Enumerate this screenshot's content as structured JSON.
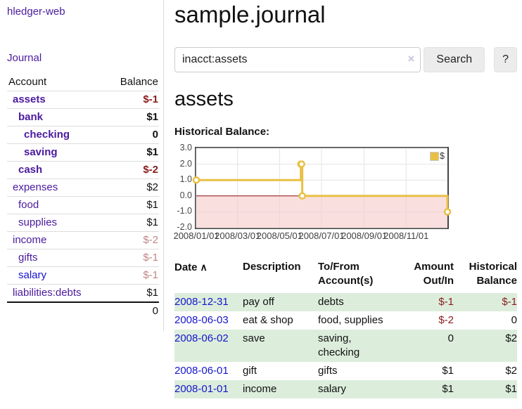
{
  "app": {
    "title": "hledger-web"
  },
  "colors": {
    "purple": "#4a1a9e",
    "blue": "#1515cd",
    "neg_strong": "#8b1c1c",
    "neg_muted": "#c28585",
    "green_row": "#dceddc",
    "gold": "#e9c044",
    "pink_region": "#f6caca",
    "zero_line": "#8f1010"
  },
  "sidebar": {
    "nav_journal": "Journal",
    "accounts_table": {
      "header_account": "Account",
      "header_balance": "Balance",
      "rows": [
        {
          "label": "assets",
          "label_class": "lvl1 strong",
          "balance": "$-1",
          "balance_class": "strong neg-strong"
        },
        {
          "label": "bank",
          "label_class": "lvl2 strong",
          "balance": "$1",
          "balance_class": "strong"
        },
        {
          "label": "checking",
          "label_class": "lvl3 strong",
          "balance": "0",
          "balance_class": "strong"
        },
        {
          "label": "saving",
          "label_class": "lvl3 strong",
          "balance": "$1",
          "balance_class": "strong"
        },
        {
          "label": "cash",
          "label_class": "lvl2 strong",
          "balance": "$-2",
          "balance_class": "strong neg-strong"
        },
        {
          "label": "expenses",
          "label_class": "lvl1",
          "balance": "$2",
          "balance_class": ""
        },
        {
          "label": "food",
          "label_class": "lvl2",
          "balance": "$1",
          "balance_class": ""
        },
        {
          "label": "supplies",
          "label_class": "lvl2",
          "balance": "$1",
          "balance_class": ""
        },
        {
          "label": "income",
          "label_class": "lvl1",
          "balance": "$-2",
          "balance_class": "neg-muted"
        },
        {
          "label": "gifts",
          "label_class": "lvl2",
          "balance": "$-1",
          "balance_class": "neg-muted"
        },
        {
          "label": "salary",
          "label_class": "lvl2 blue",
          "balance": "$-1",
          "balance_class": "neg-muted"
        },
        {
          "label": "liabilities:debts",
          "label_class": "lvl1",
          "balance": "$1",
          "balance_class": ""
        }
      ],
      "total": "0"
    }
  },
  "header": {
    "journal_title": "sample.journal"
  },
  "search": {
    "value": "inacct:assets",
    "clear_icon": "×",
    "button_label": "Search",
    "help_label": "?"
  },
  "account_page": {
    "title": "assets",
    "chart_label": "Historical Balance:"
  },
  "chart_data": {
    "type": "line",
    "step": true,
    "title": "Historical Balance",
    "series": [
      {
        "name": "$",
        "color": "#e9c044",
        "points": [
          {
            "x": "2008-01-01",
            "y": 1
          },
          {
            "x": "2008-06-01",
            "y": 2
          },
          {
            "x": "2008-06-02",
            "y": 2
          },
          {
            "x": "2008-06-03",
            "y": 0
          },
          {
            "x": "2008-12-31",
            "y": -1
          }
        ]
      }
    ],
    "xlim": [
      "2008-01-01",
      "2008-12-31"
    ],
    "ylim": [
      -2,
      3
    ],
    "x_ticks": [
      {
        "date": "2008-01-01",
        "label": "2008/01/01"
      },
      {
        "date": "2008-03-01",
        "label": "2008/03/01"
      },
      {
        "date": "2008-05-01",
        "label": "2008/05/01"
      },
      {
        "date": "2008-07-01",
        "label": "2008/07/01"
      },
      {
        "date": "2008-09-01",
        "label": "2008/09/01"
      },
      {
        "date": "2008-11-01",
        "label": "2008/11/01"
      }
    ],
    "y_ticks": [
      "3.0",
      "2.0",
      "1.0",
      "0.0",
      "-1.0",
      "-2.0"
    ],
    "grid": true,
    "legend": {
      "position": "top-right",
      "label": "$"
    },
    "negative_region_color": "#f6caca",
    "zero_line_color": "#8f1010"
  },
  "register_table": {
    "headers": {
      "date": "Date",
      "sort_icon": "∧",
      "description": "Description",
      "tofrom1": "To/From",
      "tofrom2": "Account(s)",
      "amount1": "Amount",
      "amount2": "Out/In",
      "balance1": "Historical",
      "balance2": "Balance"
    },
    "rows": [
      {
        "row_class": "shaded",
        "date": "2008-12-31",
        "description": "pay off",
        "accounts": "debts",
        "amount": "$-1",
        "amount_class": "neg",
        "balance": "$-1",
        "balance_class": "neg"
      },
      {
        "row_class": "",
        "date": "2008-06-03",
        "description": "eat & shop",
        "accounts": "food, supplies",
        "amount": "$-2",
        "amount_class": "neg",
        "balance": "0",
        "balance_class": ""
      },
      {
        "row_class": "shaded",
        "date": "2008-06-02",
        "description": "save",
        "accounts": "saving, checking",
        "amount": "0",
        "amount_class": "",
        "balance": "$2",
        "balance_class": ""
      },
      {
        "row_class": "",
        "date": "2008-06-01",
        "description": "gift",
        "accounts": "gifts",
        "amount": "$1",
        "amount_class": "",
        "balance": "$2",
        "balance_class": ""
      },
      {
        "row_class": "shaded",
        "date": "2008-01-01",
        "description": "income",
        "accounts": "salary",
        "amount": "$1",
        "amount_class": "",
        "balance": "$1",
        "balance_class": ""
      }
    ]
  }
}
